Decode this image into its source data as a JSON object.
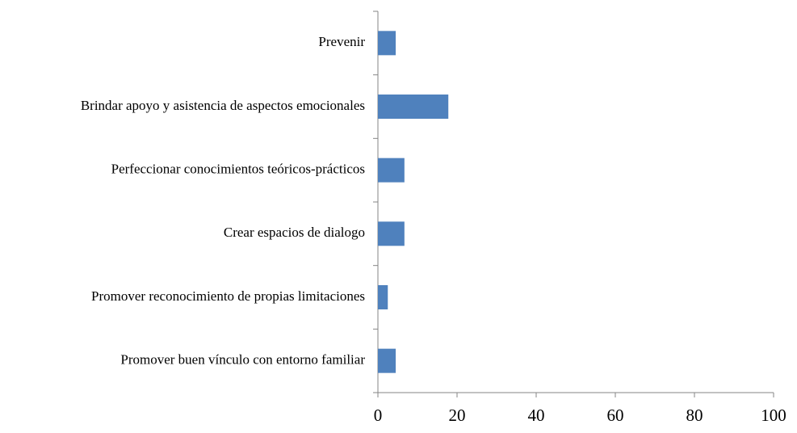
{
  "chart_data": {
    "type": "bar",
    "orientation": "horizontal",
    "categories": [
      "Prevenir",
      "Brindar apoyo y asistencia de aspectos emocionales",
      "Perfeccionar conocimientos teóricos-prácticos",
      "Crear espacios de dialogo",
      "Promover reconocimiento de propias limitaciones",
      "Promover buen vínculo con entorno familiar"
    ],
    "values": [
      4.5,
      17.8,
      6.7,
      6.7,
      2.5,
      4.5
    ],
    "color": "#4f81bd",
    "xlim": [
      0,
      100
    ],
    "xticks": [
      0,
      20,
      40,
      60,
      80,
      100
    ],
    "grid": false
  }
}
